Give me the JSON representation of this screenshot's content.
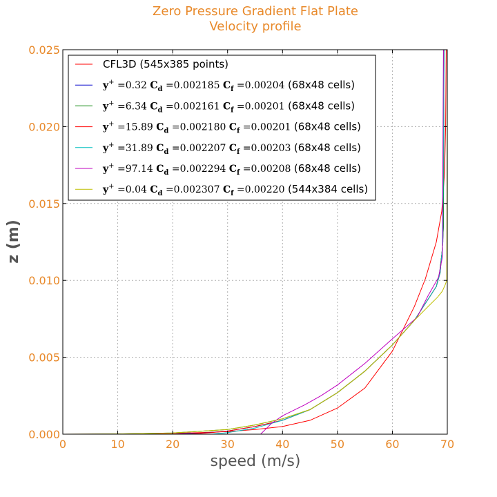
{
  "colors": {
    "accent": "#e8892a",
    "axis_label": "#555555",
    "grid": "#b0b0b0"
  },
  "chart_data": {
    "type": "line",
    "title": "Zero Pressure Gradient Flat Plate",
    "subtitle": "Velocity profile",
    "xlabel": "speed (m/s)",
    "ylabel": "z (m)",
    "xlim": [
      0,
      70
    ],
    "ylim": [
      0,
      0.025
    ],
    "xticks": [
      "0",
      "10",
      "20",
      "30",
      "40",
      "50",
      "60",
      "70"
    ],
    "yticks": [
      "0.000",
      "0.005",
      "0.010",
      "0.015",
      "0.020",
      "0.025"
    ],
    "grid": true,
    "legend_position": "top-left",
    "series": [
      {
        "name": "CFL3D (545x385 points)",
        "color": "#ff0000",
        "x": [
          0,
          10,
          20,
          25,
          30,
          35,
          40,
          45,
          50,
          55,
          60,
          64,
          66,
          68,
          69,
          69.5,
          69.7,
          69.8
        ],
        "y": [
          0,
          2e-05,
          6e-05,
          0.0001,
          0.00017,
          0.0003,
          0.0005,
          0.0009,
          0.0017,
          0.003,
          0.0054,
          0.0083,
          0.0101,
          0.0125,
          0.0145,
          0.017,
          0.02,
          0.025
        ]
      },
      {
        "name": "y+ =0.32 Cd =0.002185 Cf =0.00204 (68x48 cells)",
        "color": "#0000cc",
        "x": [
          20,
          25,
          30,
          35,
          40,
          45,
          50,
          55,
          60,
          64,
          66,
          68,
          68.6,
          69.1,
          69.3,
          69.4
        ],
        "y": [
          0,
          6e-05,
          0.0002,
          0.0005,
          0.0009,
          0.0016,
          0.0027,
          0.0041,
          0.0058,
          0.0074,
          0.0085,
          0.0096,
          0.0105,
          0.012,
          0.0135,
          0.025
        ]
      },
      {
        "name": "y+ =6.34 Cd =0.002161 Cf =0.00201 (68x48 cells)",
        "color": "#008000",
        "x": [
          0,
          10,
          20,
          30,
          35,
          40,
          45,
          50,
          55,
          60,
          64,
          66,
          68,
          68.6,
          69.1,
          69.3,
          69.4
        ],
        "y": [
          0,
          2e-05,
          8e-05,
          0.0003,
          0.0006,
          0.001,
          0.0016,
          0.0027,
          0.0041,
          0.0058,
          0.0074,
          0.0085,
          0.0096,
          0.0105,
          0.012,
          0.0135,
          0.025
        ]
      },
      {
        "name": "y+ =15.89 Cd =0.002180 Cf =0.00201 (68x48 cells)",
        "color": "#ff0000",
        "x": [
          23,
          27,
          30,
          35,
          40,
          45,
          50,
          55,
          60,
          64,
          66,
          68,
          68.7,
          69.2,
          69.4
        ],
        "y": [
          0,
          0.0001,
          0.0002,
          0.0005,
          0.0009,
          0.0016,
          0.0027,
          0.0041,
          0.0058,
          0.0074,
          0.0085,
          0.0096,
          0.0105,
          0.0125,
          0.025
        ]
      },
      {
        "name": "y+ =31.89 Cd =0.002207 Cf =0.00203 (68x48 cells)",
        "color": "#00bfbf",
        "x": [
          27,
          30,
          35,
          40,
          45,
          50,
          55,
          60,
          64,
          66,
          68,
          68.7,
          69.2,
          69.4
        ],
        "y": [
          0,
          0.0001,
          0.0004,
          0.0009,
          0.0016,
          0.0027,
          0.0041,
          0.0058,
          0.0074,
          0.0085,
          0.0096,
          0.0105,
          0.0125,
          0.025
        ]
      },
      {
        "name": "y+ =97.14 Cd =0.002294 Cf =0.00208 (68x48 cells)",
        "color": "#bf00bf",
        "x": [
          36,
          38,
          40,
          44,
          47,
          50,
          55,
          60,
          64.5,
          66.5,
          68.4,
          69.1,
          69.3
        ],
        "y": [
          0,
          0.0007,
          0.0012,
          0.0019,
          0.0025,
          0.0032,
          0.0046,
          0.0062,
          0.0076,
          0.009,
          0.0102,
          0.0115,
          0.025
        ]
      },
      {
        "name": "y+ =0.04 Cd =0.002307 Cf =0.00220 (544x384 cells)",
        "color": "#bfbf00",
        "x": [
          0,
          10,
          20,
          30,
          35,
          40,
          45,
          50,
          55,
          60,
          64,
          66.5,
          68.2,
          69.1,
          69.6,
          69.9,
          70
        ],
        "y": [
          0,
          2e-05,
          8e-05,
          0.0003,
          0.0006,
          0.001,
          0.0016,
          0.0027,
          0.0041,
          0.0058,
          0.0074,
          0.0083,
          0.0089,
          0.0093,
          0.0097,
          0.01,
          0.025
        ]
      }
    ]
  },
  "legend": [
    {
      "text": "CFL3D (545x385 points)",
      "parts": null
    },
    {
      "parts": {
        "yplus": "0.32",
        "cd": "0.002185",
        "cf": "0.00204",
        "cells": "(68x48 cells)"
      }
    },
    {
      "parts": {
        "yplus": "6.34",
        "cd": "0.002161",
        "cf": "0.00201",
        "cells": "(68x48 cells)"
      }
    },
    {
      "parts": {
        "yplus": "15.89",
        "cd": "0.002180",
        "cf": "0.00201",
        "cells": "(68x48 cells)"
      }
    },
    {
      "parts": {
        "yplus": "31.89",
        "cd": "0.002207",
        "cf": "0.00203",
        "cells": "(68x48 cells)"
      }
    },
    {
      "parts": {
        "yplus": "97.14",
        "cd": "0.002294",
        "cf": "0.00208",
        "cells": "(68x48 cells)"
      }
    },
    {
      "parts": {
        "yplus": "0.04",
        "cd": "0.002307",
        "cf": "0.00220",
        "cells": "(544x384 cells)"
      }
    }
  ]
}
